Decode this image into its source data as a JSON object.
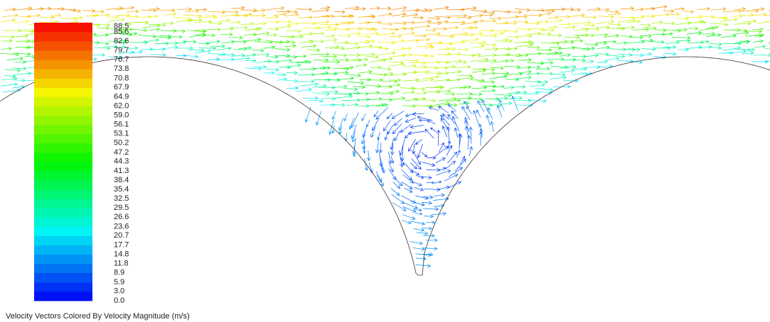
{
  "chart_data": {
    "type": "vector",
    "title": "Velocity Vectors Colored By Velocity Magnitude (m/s)",
    "colormap": "rainbow",
    "clim": [
      0,
      88.5
    ],
    "ticks": [
      {
        "value": 0,
        "label": "0.0"
      },
      {
        "value": 3,
        "label": "3.0"
      },
      5.9,
      8.9,
      11.8,
      14.8,
      17.7,
      20.7,
      23.6,
      26.6,
      29.5,
      32.5,
      35.4,
      38.4,
      41.3,
      44.3,
      47.2,
      50.2,
      53.1,
      56.1,
      {
        "value": 59,
        "label": "59.0"
      },
      {
        "value": 62,
        "label": "62.0"
      },
      64.9,
      67.9,
      70.8,
      73.8,
      76.7,
      79.7,
      82.6,
      85.6,
      88.5
    ]
  }
}
